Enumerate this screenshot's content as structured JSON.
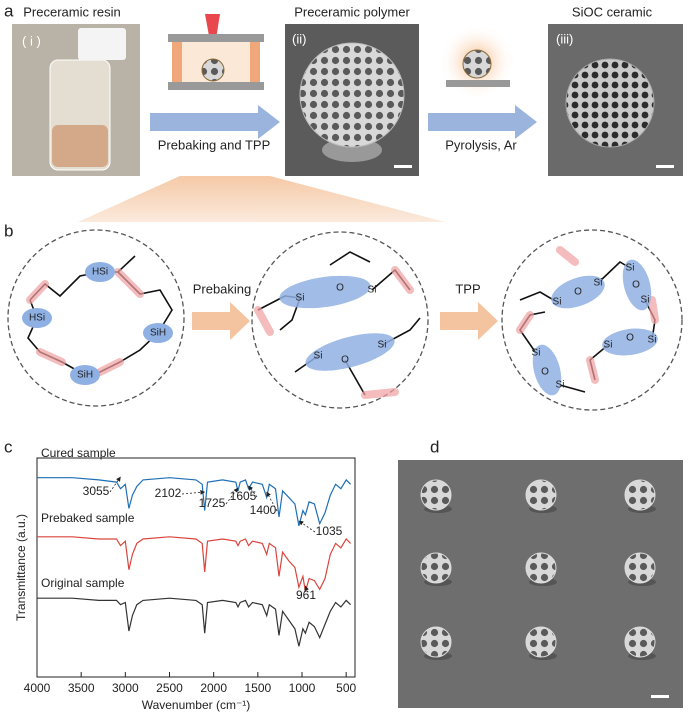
{
  "panels": {
    "a": {
      "label": "a",
      "steps": [
        {
          "title": "Preceramic resin",
          "tag": "( i )"
        },
        {
          "title": "Preceramic polymer",
          "tag": "(ii)"
        },
        {
          "title": "SiOC ceramic",
          "tag": "(iii)"
        }
      ],
      "arrows": [
        "Prebaking and TPP",
        "Pyrolysis, Ar"
      ]
    },
    "b": {
      "label": "b",
      "arrows": [
        "Prebaking",
        "TPP"
      ],
      "networks": [
        [
          "HSi",
          "HSi",
          "SiH",
          "SiH"
        ],
        [
          "Si",
          "O",
          "Si",
          "Si",
          "O",
          "Si"
        ],
        [
          "Si",
          "O",
          "Si",
          "Si",
          "O",
          "Si",
          "Si",
          "O",
          "Si",
          "Si",
          "O",
          "Si"
        ]
      ]
    },
    "c": {
      "label": "c"
    },
    "d": {
      "label": "d"
    }
  },
  "chart_data": {
    "type": "line",
    "y_label": "Transmittance (a.u.)",
    "x_label": "Wavenumber (cm⁻¹)",
    "x": [
      4000,
      3600,
      3300,
      3100,
      3055,
      3000,
      2960,
      2920,
      2870,
      2800,
      2500,
      2200,
      2130,
      2102,
      2070,
      1900,
      1750,
      1725,
      1700,
      1640,
      1605,
      1560,
      1450,
      1400,
      1370,
      1300,
      1260,
      1220,
      1150,
      1080,
      1035,
      990,
      961,
      920,
      860,
      800,
      740,
      680,
      620,
      560,
      500,
      450
    ],
    "series": [
      {
        "name": "Cured sample",
        "color": "#1f6fb4",
        "values": [
          9.1,
          9.1,
          9.0,
          8.9,
          8.6,
          8.8,
          7.7,
          8.3,
          8.7,
          9.0,
          9.1,
          9.0,
          8.8,
          7.6,
          8.9,
          9.0,
          8.9,
          8.5,
          8.9,
          9.0,
          8.6,
          8.9,
          8.8,
          8.2,
          8.8,
          8.6,
          7.3,
          8.5,
          8.2,
          7.9,
          6.9,
          7.6,
          7.4,
          8.0,
          7.9,
          7.0,
          7.5,
          8.3,
          8.8,
          8.6,
          9.0,
          8.8
        ]
      },
      {
        "name": "Prebaked sample",
        "color": "#d9453d",
        "values": [
          6.4,
          6.4,
          6.3,
          6.3,
          6.0,
          6.2,
          4.9,
          5.6,
          6.1,
          6.3,
          6.4,
          6.3,
          6.1,
          4.8,
          6.2,
          6.3,
          6.2,
          6.0,
          6.2,
          6.3,
          6.0,
          6.2,
          6.1,
          5.6,
          6.1,
          5.9,
          4.6,
          5.7,
          5.3,
          5.0,
          4.1,
          4.6,
          3.9,
          4.5,
          4.4,
          4.0,
          4.5,
          5.6,
          6.1,
          5.9,
          6.3,
          6.1
        ]
      },
      {
        "name": "Original sample",
        "color": "#333333",
        "values": [
          3.6,
          3.6,
          3.5,
          3.5,
          3.3,
          3.4,
          2.1,
          2.8,
          3.3,
          3.5,
          3.6,
          3.5,
          3.3,
          2.0,
          3.4,
          3.5,
          3.4,
          3.2,
          3.4,
          3.5,
          3.2,
          3.4,
          3.3,
          2.8,
          3.3,
          3.1,
          1.9,
          3.0,
          2.6,
          2.2,
          1.4,
          2.2,
          2.0,
          2.5,
          2.3,
          1.8,
          2.4,
          3.0,
          3.4,
          3.2,
          3.5,
          3.3
        ]
      }
    ],
    "peaks": [
      3055,
      2102,
      1725,
      1605,
      1400,
      1035,
      961
    ],
    "xlim": [
      4000,
      400
    ],
    "ylim": [
      0,
      10
    ],
    "xticks": [
      4000,
      3500,
      3000,
      2500,
      2000,
      1500,
      1000,
      500
    ]
  }
}
